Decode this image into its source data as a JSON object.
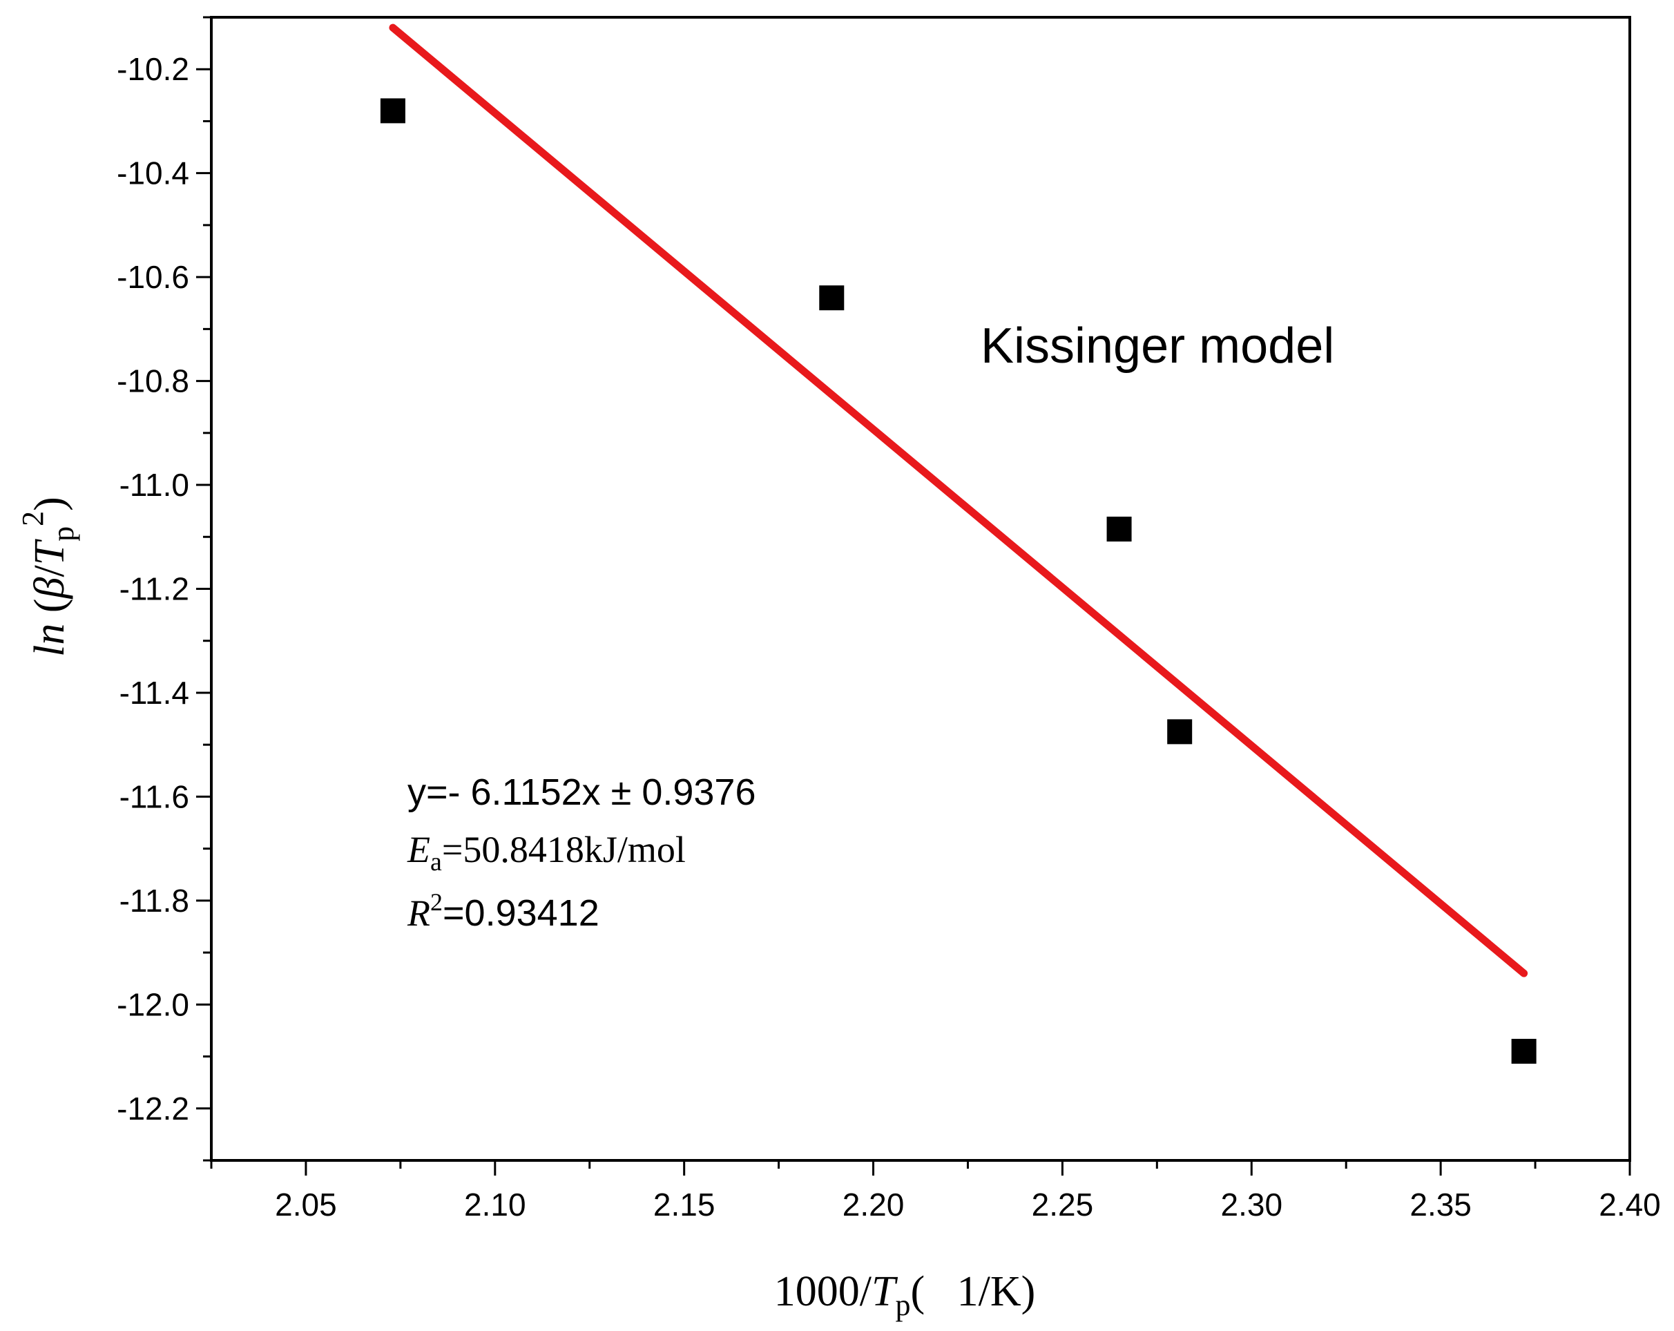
{
  "chart_data": {
    "type": "scatter",
    "xlabel": "1000/Tp(   1/K)",
    "xlabel_parts": {
      "prefix": "1000/",
      "var": "T",
      "sub": "p",
      "suffix": "(   1/K)"
    },
    "ylabel": "ln (β/Tp 2)",
    "ylabel_parts": {
      "fn": "ln",
      "open": " (",
      "beta": "β",
      "slash": "/",
      "var": "T",
      "sub": "p",
      "sup": "2",
      "close": ")"
    },
    "xlim": [
      2.025,
      2.4
    ],
    "ylim": [
      -12.3,
      -10.1
    ],
    "x_ticks": [
      "2.05",
      "2.10",
      "2.15",
      "2.20",
      "2.25",
      "2.30",
      "2.35",
      "2.40"
    ],
    "y_ticks": [
      "-10.2",
      "-10.4",
      "-10.6",
      "-10.8",
      "-11.0",
      "-11.2",
      "-11.4",
      "-11.6",
      "-11.8",
      "-12.0",
      "-12.2"
    ],
    "series": [
      {
        "marker": "square",
        "color": "#000000",
        "points": [
          {
            "x": 2.073,
            "y": -10.28
          },
          {
            "x": 2.189,
            "y": -10.64
          },
          {
            "x": 2.265,
            "y": -11.085
          },
          {
            "x": 2.281,
            "y": -11.475
          },
          {
            "x": 2.372,
            "y": -12.09
          }
        ]
      }
    ],
    "fit_line": {
      "color": "#e8191c",
      "x": [
        2.073,
        2.372
      ],
      "y": [
        -10.12,
        -11.94
      ]
    },
    "annotations": {
      "model": "Kissinger model",
      "equation": "y=- 6.1152x ± 0.9376",
      "ea_var": "E",
      "ea_sub": "a",
      "ea_value": "=50.8418kJ/mol",
      "r2_var": "R",
      "r2_sup": "2",
      "r2_value": "=0.93412"
    }
  }
}
